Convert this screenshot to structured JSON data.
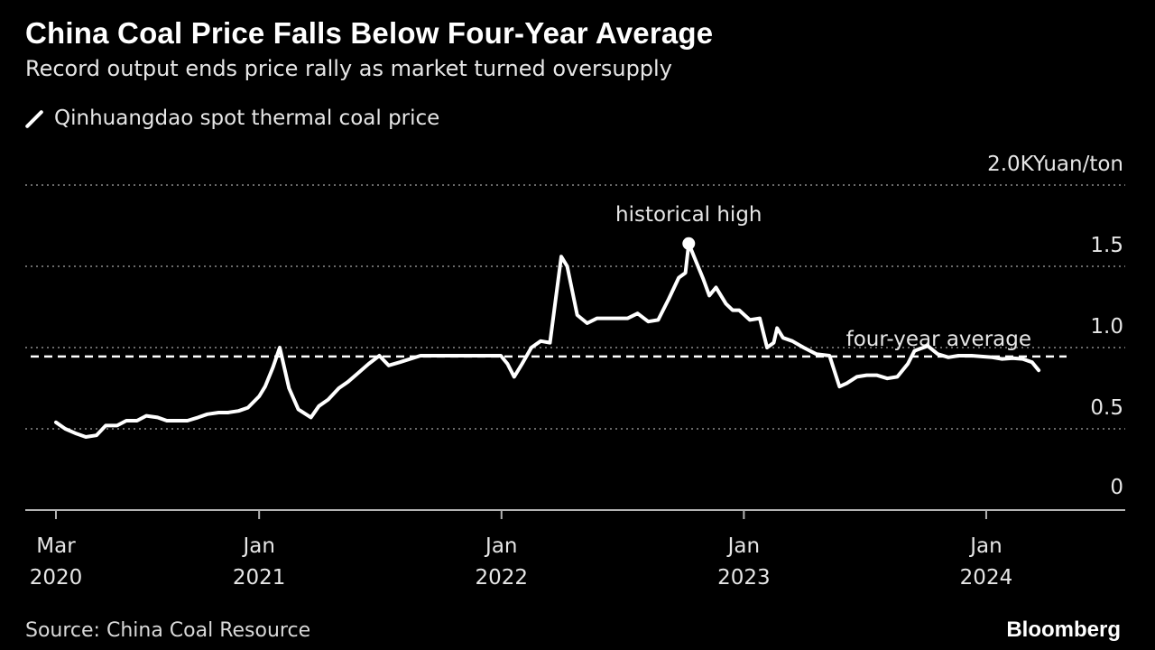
{
  "header": {
    "title": "China Coal Price Falls Below Four-Year Average",
    "subtitle": "Record output ends price rally as market turned oversupply"
  },
  "legend": {
    "label": "Qinhuangdao spot thermal coal price"
  },
  "footer": {
    "source": "Source: China Coal Resource",
    "brand": "Bloomberg"
  },
  "colors": {
    "background": "#000000",
    "line": "#ffffff",
    "grid": "#8c8c8c",
    "text": "#e6e6e6"
  },
  "chart_data": {
    "type": "line",
    "title": "China Coal Price Falls Below Four-Year Average",
    "subtitle": "Record output ends price rally as market turned oversupply",
    "ylabel": "Yuan/ton",
    "yunit_label": "2.0KYuan/ton",
    "ylim": [
      0,
      2000
    ],
    "yticks": [
      {
        "value": 0,
        "label": "0"
      },
      {
        "value": 500,
        "label": "0.5"
      },
      {
        "value": 1000,
        "label": "1.0"
      },
      {
        "value": 1500,
        "label": "1.5"
      },
      {
        "value": 2000,
        "label": "2.0KYuan/ton"
      }
    ],
    "xlim": [
      "2020-03-01",
      "2024-05-01"
    ],
    "xticks": [
      {
        "date": "2020-03-01",
        "label": [
          "Mar",
          "2020"
        ]
      },
      {
        "date": "2021-01-01",
        "label": [
          "Jan",
          "2021"
        ]
      },
      {
        "date": "2022-01-01",
        "label": [
          "Jan",
          "2022"
        ]
      },
      {
        "date": "2023-01-01",
        "label": [
          "Jan",
          "2023"
        ]
      },
      {
        "date": "2024-01-01",
        "label": [
          "Jan",
          "2024"
        ]
      }
    ],
    "grid": "horizontal dotted",
    "legend_placement": "top-left",
    "reference_lines": [
      {
        "value": 945,
        "label": "four-year average",
        "style": "dashed"
      }
    ],
    "annotations": [
      {
        "date": "2022-10-10",
        "value": 1640,
        "label": "historical high",
        "marker": "dot"
      }
    ],
    "series": [
      {
        "name": "Qinhuangdao spot thermal coal price",
        "points": [
          [
            "2020-03-01",
            540
          ],
          [
            "2020-03-15",
            500
          ],
          [
            "2020-04-01",
            470
          ],
          [
            "2020-04-15",
            450
          ],
          [
            "2020-05-01",
            460
          ],
          [
            "2020-05-15",
            520
          ],
          [
            "2020-06-01",
            520
          ],
          [
            "2020-06-15",
            550
          ],
          [
            "2020-07-01",
            550
          ],
          [
            "2020-07-15",
            580
          ],
          [
            "2020-08-01",
            570
          ],
          [
            "2020-08-15",
            550
          ],
          [
            "2020-09-01",
            550
          ],
          [
            "2020-09-15",
            550
          ],
          [
            "2020-10-01",
            570
          ],
          [
            "2020-10-15",
            590
          ],
          [
            "2020-11-01",
            600
          ],
          [
            "2020-11-15",
            600
          ],
          [
            "2020-12-01",
            610
          ],
          [
            "2020-12-15",
            630
          ],
          [
            "2021-01-01",
            700
          ],
          [
            "2021-01-10",
            760
          ],
          [
            "2021-01-22",
            880
          ],
          [
            "2021-02-01",
            1000
          ],
          [
            "2021-02-15",
            750
          ],
          [
            "2021-03-01",
            620
          ],
          [
            "2021-03-20",
            570
          ],
          [
            "2021-04-01",
            640
          ],
          [
            "2021-04-15",
            680
          ],
          [
            "2021-05-01",
            750
          ],
          [
            "2021-05-15",
            790
          ],
          [
            "2021-06-01",
            850
          ],
          [
            "2021-06-15",
            900
          ],
          [
            "2021-07-01",
            950
          ],
          [
            "2021-07-15",
            890
          ],
          [
            "2021-08-01",
            910
          ],
          [
            "2021-09-01",
            950
          ],
          [
            "2021-09-15",
            950
          ],
          [
            "2021-10-01",
            950
          ],
          [
            "2021-12-31",
            950
          ],
          [
            "2022-01-10",
            900
          ],
          [
            "2022-01-20",
            820
          ],
          [
            "2022-02-01",
            900
          ],
          [
            "2022-02-15",
            1000
          ],
          [
            "2022-03-01",
            1040
          ],
          [
            "2022-03-15",
            1030
          ],
          [
            "2022-04-01",
            1560
          ],
          [
            "2022-04-10",
            1500
          ],
          [
            "2022-04-25",
            1200
          ],
          [
            "2022-05-10",
            1150
          ],
          [
            "2022-05-25",
            1180
          ],
          [
            "2022-06-15",
            1180
          ],
          [
            "2022-07-10",
            1180
          ],
          [
            "2022-07-25",
            1210
          ],
          [
            "2022-08-10",
            1160
          ],
          [
            "2022-08-25",
            1170
          ],
          [
            "2022-09-10",
            1300
          ],
          [
            "2022-09-25",
            1430
          ],
          [
            "2022-10-05",
            1460
          ],
          [
            "2022-10-10",
            1640
          ],
          [
            "2022-10-20",
            1540
          ],
          [
            "2022-11-01",
            1420
          ],
          [
            "2022-11-10",
            1320
          ],
          [
            "2022-11-20",
            1370
          ],
          [
            "2022-12-05",
            1270
          ],
          [
            "2022-12-15",
            1230
          ],
          [
            "2022-12-25",
            1230
          ],
          [
            "2023-01-10",
            1170
          ],
          [
            "2023-01-25",
            1180
          ],
          [
            "2023-02-05",
            1000
          ],
          [
            "2023-02-15",
            1030
          ],
          [
            "2023-02-20",
            1120
          ],
          [
            "2023-03-01",
            1060
          ],
          [
            "2023-03-15",
            1040
          ],
          [
            "2023-04-01",
            1000
          ],
          [
            "2023-04-20",
            960
          ],
          [
            "2023-05-10",
            950
          ],
          [
            "2023-05-25",
            760
          ],
          [
            "2023-06-05",
            780
          ],
          [
            "2023-06-20",
            820
          ],
          [
            "2023-07-05",
            830
          ],
          [
            "2023-07-20",
            830
          ],
          [
            "2023-08-05",
            810
          ],
          [
            "2023-08-20",
            820
          ],
          [
            "2023-09-05",
            900
          ],
          [
            "2023-09-15",
            980
          ],
          [
            "2023-10-05",
            1010
          ],
          [
            "2023-10-20",
            960
          ],
          [
            "2023-11-05",
            940
          ],
          [
            "2023-11-20",
            950
          ],
          [
            "2023-12-10",
            950
          ],
          [
            "2023-12-25",
            945
          ],
          [
            "2024-01-10",
            940
          ],
          [
            "2024-01-25",
            930
          ],
          [
            "2024-02-10",
            935
          ],
          [
            "2024-02-25",
            930
          ],
          [
            "2024-03-10",
            910
          ],
          [
            "2024-03-20",
            860
          ]
        ]
      }
    ]
  }
}
